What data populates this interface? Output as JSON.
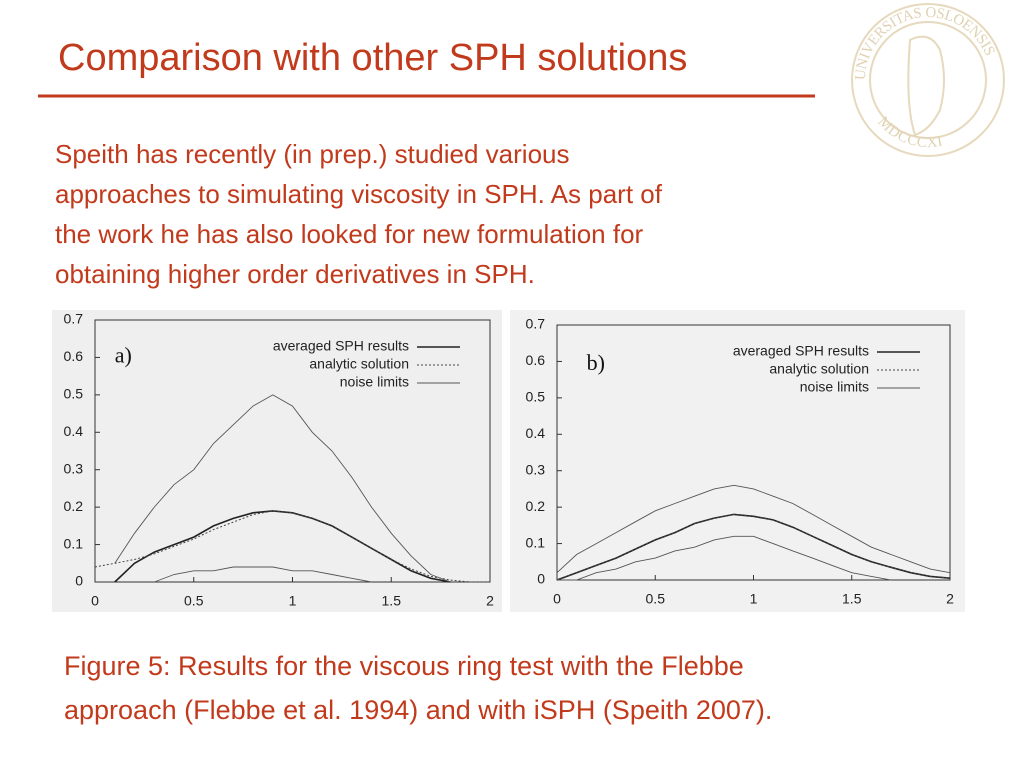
{
  "slide": {
    "title": "Comparison with other SPH solutions",
    "body": [
      "Speith has recently (in prep.) studied various",
      "approaches to simulating viscosity in SPH. As part of",
      "the work he has also looked for new formulation for",
      "obtaining higher order derivatives in SPH."
    ],
    "caption": [
      "Figure 5: Results for the viscous ring test with the Flebbe",
      "approach (Flebbe et al. 1994) and with iSPH (Speith 2007)."
    ]
  },
  "seal": {
    "top": "UNIVERSITAS OSLOENSIS",
    "bottom": "MDCCCXI"
  },
  "chart_data": [
    {
      "type": "line",
      "panel_label": "a)",
      "x": [
        0,
        0.1,
        0.2,
        0.3,
        0.4,
        0.5,
        0.6,
        0.7,
        0.8,
        0.9,
        1.0,
        1.1,
        1.2,
        1.3,
        1.4,
        1.5,
        1.6,
        1.7,
        1.8,
        1.9,
        2.0
      ],
      "xlim": [
        0,
        2
      ],
      "xticks": [
        0,
        0.5,
        1,
        1.5,
        2
      ],
      "ylim": [
        0,
        0.7
      ],
      "yticks": [
        0,
        0.1,
        0.2,
        0.3,
        0.4,
        0.5,
        0.6,
        0.7
      ],
      "series": [
        {
          "name": "averaged SPH results",
          "color": "#222",
          "style": "solid",
          "values": [
            null,
            0.0,
            0.05,
            0.08,
            0.1,
            0.12,
            0.15,
            0.17,
            0.185,
            0.19,
            0.185,
            0.17,
            0.15,
            0.12,
            0.09,
            0.06,
            0.03,
            0.01,
            0,
            null,
            null
          ]
        },
        {
          "name": "analytic solution",
          "color": "#444",
          "style": "dotted",
          "values": [
            0.04,
            0.05,
            0.06,
            0.075,
            0.095,
            0.115,
            0.14,
            0.16,
            0.18,
            0.19,
            0.185,
            0.17,
            0.15,
            0.12,
            0.09,
            0.06,
            0.035,
            0.015,
            0.005,
            0,
            0
          ]
        },
        {
          "name": "noise limits",
          "color": "#555",
          "style": "thin",
          "values": [
            null,
            0.05,
            0.13,
            0.2,
            0.26,
            0.3,
            0.37,
            0.42,
            0.47,
            0.5,
            0.47,
            0.4,
            0.35,
            0.28,
            0.2,
            0.13,
            0.07,
            0.02,
            0,
            null,
            null
          ],
          "lower": [
            null,
            null,
            null,
            0.0,
            0.02,
            0.03,
            0.03,
            0.04,
            0.04,
            0.04,
            0.03,
            0.03,
            0.02,
            0.01,
            0.0,
            null,
            null,
            null,
            null,
            null,
            null
          ]
        }
      ]
    },
    {
      "type": "line",
      "panel_label": "b)",
      "x": [
        0,
        0.1,
        0.2,
        0.3,
        0.4,
        0.5,
        0.6,
        0.7,
        0.8,
        0.9,
        1.0,
        1.1,
        1.2,
        1.3,
        1.4,
        1.5,
        1.6,
        1.7,
        1.8,
        1.9,
        2.0
      ],
      "xlim": [
        0,
        2
      ],
      "xticks": [
        0,
        0.5,
        1,
        1.5,
        2
      ],
      "ylim": [
        0,
        0.7
      ],
      "yticks": [
        0,
        0.1,
        0.2,
        0.3,
        0.4,
        0.5,
        0.6,
        0.7
      ],
      "series": [
        {
          "name": "averaged SPH results",
          "color": "#222",
          "style": "solid",
          "values": [
            0.0,
            0.02,
            0.04,
            0.06,
            0.085,
            0.11,
            0.13,
            0.155,
            0.17,
            0.18,
            0.175,
            0.165,
            0.145,
            0.12,
            0.095,
            0.07,
            0.05,
            0.035,
            0.02,
            0.01,
            0.005
          ]
        },
        {
          "name": "analytic solution",
          "color": "#444",
          "style": "dotted",
          "values": [
            0.0,
            0.02,
            0.04,
            0.06,
            0.085,
            0.11,
            0.13,
            0.155,
            0.17,
            0.18,
            0.175,
            0.165,
            0.145,
            0.12,
            0.095,
            0.07,
            0.05,
            0.035,
            0.02,
            0.01,
            0.005
          ]
        },
        {
          "name": "noise limits",
          "color": "#555",
          "style": "thin",
          "values": [
            0.02,
            0.07,
            0.1,
            0.13,
            0.16,
            0.19,
            0.21,
            0.23,
            0.25,
            0.26,
            0.25,
            0.23,
            0.21,
            0.18,
            0.15,
            0.12,
            0.09,
            0.07,
            0.05,
            0.03,
            0.02
          ],
          "lower": [
            0,
            0.0,
            0.02,
            0.03,
            0.05,
            0.06,
            0.08,
            0.09,
            0.11,
            0.12,
            0.12,
            0.1,
            0.08,
            0.06,
            0.04,
            0.02,
            0.01,
            0,
            null,
            null,
            null
          ]
        }
      ]
    }
  ]
}
